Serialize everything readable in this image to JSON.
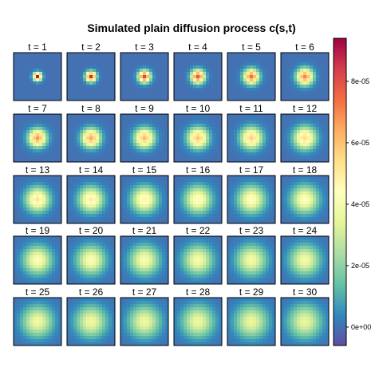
{
  "chart_data": {
    "type": "heatmap",
    "title": "Simulated plain diffusion process c(s,t)",
    "panel_label_prefix": "t = ",
    "panels": [
      1,
      2,
      3,
      4,
      5,
      6,
      7,
      8,
      9,
      10,
      11,
      12,
      13,
      14,
      15,
      16,
      17,
      18,
      19,
      20,
      21,
      22,
      23,
      24,
      25,
      26,
      27,
      28,
      29,
      30
    ],
    "grid_size": 15,
    "layout": {
      "rows": 5,
      "cols": 6
    },
    "peak_values": [
      9e-05,
      8.6e-05,
      8.2e-05,
      7.8e-05,
      7.4e-05,
      7e-05,
      6.7e-05,
      6.4e-05,
      6.1e-05,
      5.9e-05,
      5.6e-05,
      5.4e-05,
      5.2e-05,
      5e-05,
      4.8e-05,
      4.6e-05,
      4.5e-05,
      4.4e-05,
      4.3e-05,
      4.2e-05,
      4.1e-05,
      4e-05,
      3.9e-05,
      3.85e-05,
      3.8e-05,
      3.75e-05,
      3.7e-05,
      3.65e-05,
      3.6e-05,
      3.55e-05
    ],
    "spread_sigma": [
      0.9,
      1.1,
      1.3,
      1.45,
      1.6,
      1.75,
      1.9,
      2.0,
      2.1,
      2.2,
      2.3,
      2.4,
      2.5,
      2.6,
      2.7,
      2.8,
      2.85,
      2.9,
      2.95,
      3.0,
      3.05,
      3.1,
      3.15,
      3.2,
      3.25,
      3.3,
      3.35,
      3.4,
      3.45,
      3.5
    ],
    "colorbar": {
      "range": [
        -6e-06,
        9.4e-05
      ],
      "ticks": [
        0,
        2e-05,
        4e-05,
        6e-05,
        8e-05
      ],
      "tick_labels": [
        "0e+00",
        "2e-05",
        "4e-05",
        "6e-05",
        "8e-05"
      ],
      "palette": [
        "#5E4FA2",
        "#3288BD",
        "#66C2A5",
        "#ABDDA4",
        "#E6F598",
        "#FFFFBF",
        "#FEE08B",
        "#FDAE61",
        "#F46D43",
        "#D53E4F",
        "#9E0142"
      ]
    }
  }
}
